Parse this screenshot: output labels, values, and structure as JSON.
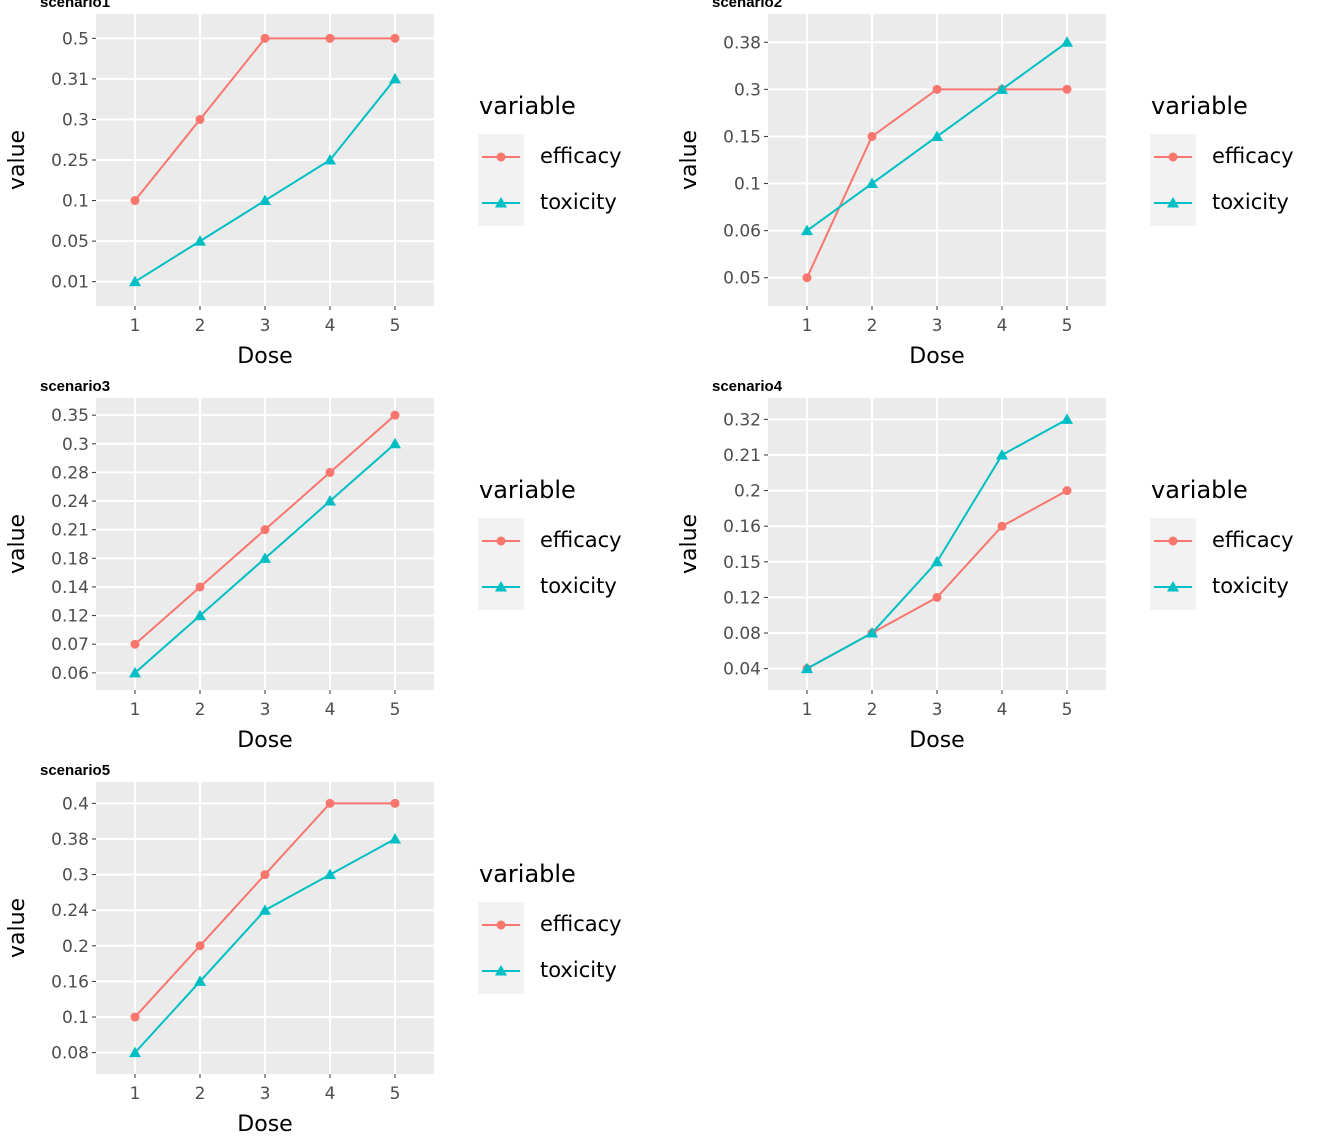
{
  "chart_data": [
    {
      "type": "line",
      "title": "scenario1",
      "x_label": "Dose",
      "y_label": "value",
      "legend_title": "variable",
      "x": [
        1,
        2,
        3,
        4,
        5
      ],
      "xlim": [
        0.4,
        5.6
      ],
      "xticks": [
        1,
        2,
        3,
        4,
        5
      ],
      "y_scale": "discrete",
      "yticks": [
        0.01,
        0.05,
        0.1,
        0.25,
        0.3,
        0.31,
        0.5
      ],
      "grid": true,
      "series": [
        {
          "name": "efficacy",
          "color": "#F8766D",
          "marker": "circle",
          "values": [
            0.1,
            0.3,
            0.5,
            0.5,
            0.5
          ]
        },
        {
          "name": "toxicity",
          "color": "#00BFC4",
          "marker": "triangle",
          "values": [
            0.01,
            0.05,
            0.1,
            0.25,
            0.31
          ]
        }
      ]
    },
    {
      "type": "line",
      "title": "scenario2",
      "x_label": "Dose",
      "y_label": "value",
      "legend_title": "variable",
      "x": [
        1,
        2,
        3,
        4,
        5
      ],
      "xlim": [
        0.4,
        5.6
      ],
      "xticks": [
        1,
        2,
        3,
        4,
        5
      ],
      "y_scale": "discrete",
      "yticks": [
        0.05,
        0.06,
        0.1,
        0.15,
        0.3,
        0.38
      ],
      "grid": true,
      "series": [
        {
          "name": "efficacy",
          "color": "#F8766D",
          "marker": "circle",
          "values": [
            0.05,
            0.15,
            0.3,
            0.3,
            0.3
          ]
        },
        {
          "name": "toxicity",
          "color": "#00BFC4",
          "marker": "triangle",
          "values": [
            0.06,
            0.1,
            0.15,
            0.3,
            0.38
          ]
        }
      ]
    },
    {
      "type": "line",
      "title": "scenario3",
      "x_label": "Dose",
      "y_label": "value",
      "legend_title": "variable",
      "x": [
        1,
        2,
        3,
        4,
        5
      ],
      "xlim": [
        0.4,
        5.6
      ],
      "xticks": [
        1,
        2,
        3,
        4,
        5
      ],
      "y_scale": "discrete",
      "yticks": [
        0.06,
        0.07,
        0.12,
        0.14,
        0.18,
        0.21,
        0.24,
        0.28,
        0.3,
        0.35
      ],
      "grid": true,
      "series": [
        {
          "name": "efficacy",
          "color": "#F8766D",
          "marker": "circle",
          "values": [
            0.07,
            0.14,
            0.21,
            0.28,
            0.35
          ]
        },
        {
          "name": "toxicity",
          "color": "#00BFC4",
          "marker": "triangle",
          "values": [
            0.06,
            0.12,
            0.18,
            0.24,
            0.3
          ]
        }
      ]
    },
    {
      "type": "line",
      "title": "scenario4",
      "x_label": "Dose",
      "y_label": "value",
      "legend_title": "variable",
      "x": [
        1,
        2,
        3,
        4,
        5
      ],
      "xlim": [
        0.4,
        5.6
      ],
      "xticks": [
        1,
        2,
        3,
        4,
        5
      ],
      "y_scale": "discrete",
      "yticks": [
        0.04,
        0.08,
        0.12,
        0.15,
        0.16,
        0.2,
        0.21,
        0.32
      ],
      "grid": true,
      "series": [
        {
          "name": "efficacy",
          "color": "#F8766D",
          "marker": "circle",
          "values": [
            0.04,
            0.08,
            0.12,
            0.16,
            0.2
          ]
        },
        {
          "name": "toxicity",
          "color": "#00BFC4",
          "marker": "triangle",
          "values": [
            0.04,
            0.08,
            0.15,
            0.21,
            0.32
          ]
        }
      ]
    },
    {
      "type": "line",
      "title": "scenario5",
      "x_label": "Dose",
      "y_label": "value",
      "legend_title": "variable",
      "x": [
        1,
        2,
        3,
        4,
        5
      ],
      "xlim": [
        0.4,
        5.6
      ],
      "xticks": [
        1,
        2,
        3,
        4,
        5
      ],
      "y_scale": "discrete",
      "yticks": [
        0.08,
        0.1,
        0.16,
        0.2,
        0.24,
        0.3,
        0.38,
        0.4
      ],
      "grid": true,
      "series": [
        {
          "name": "efficacy",
          "color": "#F8766D",
          "marker": "circle",
          "values": [
            0.1,
            0.2,
            0.3,
            0.4,
            0.4
          ]
        },
        {
          "name": "toxicity",
          "color": "#00BFC4",
          "marker": "triangle",
          "values": [
            0.08,
            0.16,
            0.24,
            0.3,
            0.38
          ]
        }
      ]
    }
  ]
}
